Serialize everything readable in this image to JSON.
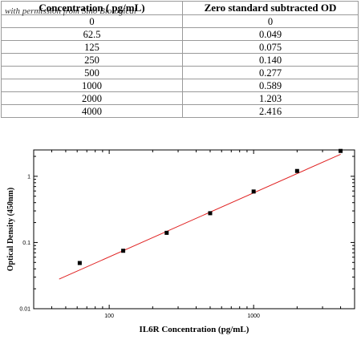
{
  "table": {
    "watermark": "with permission from Sino Biological",
    "headers": [
      "Concentration ( pg/mL)",
      "Zero standard subtracted OD"
    ],
    "rows": [
      [
        "0",
        "0"
      ],
      [
        "62.5",
        "0.049"
      ],
      [
        "125",
        "0.075"
      ],
      [
        "250",
        "0.140"
      ],
      [
        "500",
        "0.277"
      ],
      [
        "1000",
        "0.589"
      ],
      [
        "2000",
        "1.203"
      ],
      [
        "4000",
        "2.416"
      ]
    ]
  },
  "chart_data": {
    "type": "scatter",
    "title": "",
    "xlabel": "IL6R Concentration (pg/mL)",
    "ylabel": "Optical Density (450nm)",
    "xscale": "log",
    "yscale": "log",
    "xlim": [
      30,
      5000
    ],
    "ylim": [
      0.01,
      2.5
    ],
    "xticks": [
      {
        "value": 100,
        "label": "100"
      },
      {
        "value": 1000,
        "label": "1000"
      }
    ],
    "yticks": [
      {
        "value": 0.01,
        "label": "0.01"
      },
      {
        "value": 0.1,
        "label": "0.1"
      },
      {
        "value": 1,
        "label": "1"
      }
    ],
    "grid": false,
    "series": [
      {
        "x": [
          62.5,
          125,
          250,
          500,
          1000,
          2000,
          4000
        ],
        "y": [
          0.049,
          0.075,
          0.14,
          0.277,
          0.589,
          1.203,
          2.416
        ],
        "color": "#000000"
      }
    ],
    "fit_line": {
      "x": [
        45,
        4000
      ],
      "y": [
        0.028,
        2.15
      ],
      "color": "#e02020"
    }
  }
}
